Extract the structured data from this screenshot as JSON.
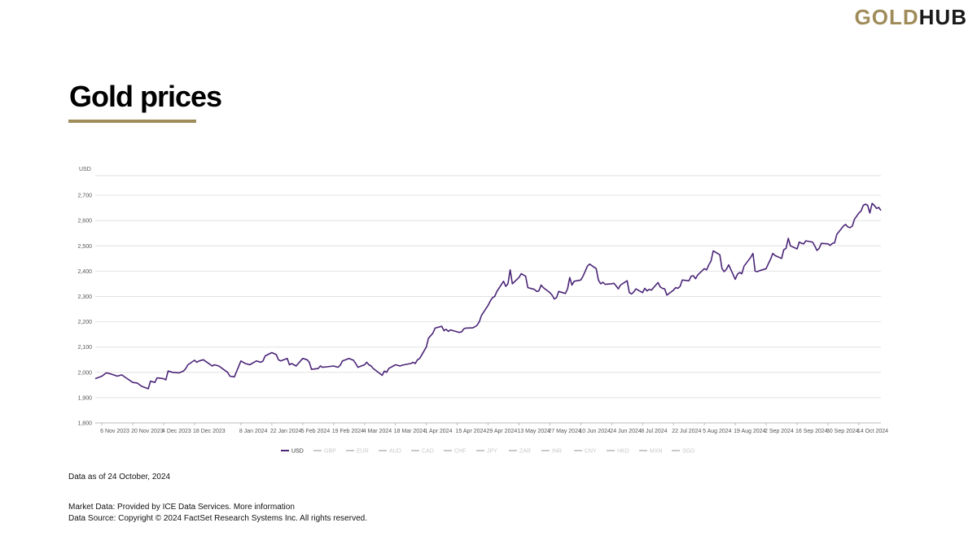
{
  "brand": {
    "gold": "GOLD",
    "hub": "HUB"
  },
  "page_title": "Gold prices",
  "footer": {
    "as_of": "Data as of 24 October, 2024",
    "market_data": "Market Data: Provided by ICE Data Services. More information",
    "source": "Data Source: Copyright © 2024 FactSet Research Systems Inc. All rights reserved."
  },
  "colors": {
    "accent": "#a08c5a",
    "series": "#4b2577",
    "inactive": "#c8c8c8"
  },
  "chart_data": {
    "type": "line",
    "title": "",
    "xlabel": "",
    "ylabel": "USD",
    "ylim": [
      1800,
      2800
    ],
    "yticks": [
      1800,
      1900,
      2000,
      2100,
      2200,
      2300,
      2400,
      2500,
      2600,
      2700
    ],
    "ytick_labels": [
      "1,800",
      "1,900",
      "2,000",
      "2,100",
      "2,200",
      "2,300",
      "2,400",
      "2,500",
      "2,600",
      "2,700"
    ],
    "x_start": "2023-11-03",
    "x_end": "2024-10-24",
    "xticks": [
      {
        "date": "2023-11-06",
        "label": "6 Nov 2023"
      },
      {
        "date": "2023-11-20",
        "label": "20 Nov 2023"
      },
      {
        "date": "2023-12-04",
        "label": "4 Dec 2023"
      },
      {
        "date": "2023-12-18",
        "label": "18 Dec 2023"
      },
      {
        "date": "2024-01-08",
        "label": "8 Jan 2024"
      },
      {
        "date": "2024-01-22",
        "label": "22 Jan 2024"
      },
      {
        "date": "2024-02-05",
        "label": "5 Feb 2024"
      },
      {
        "date": "2024-02-19",
        "label": "19 Feb 2024"
      },
      {
        "date": "2024-03-04",
        "label": "4 Mar 2024"
      },
      {
        "date": "2024-03-18",
        "label": "18 Mar 2024"
      },
      {
        "date": "2024-04-01",
        "label": "1 Apr 2024"
      },
      {
        "date": "2024-04-15",
        "label": "15 Apr 2024"
      },
      {
        "date": "2024-04-29",
        "label": "29 Apr 2024"
      },
      {
        "date": "2024-05-13",
        "label": "13 May 2024"
      },
      {
        "date": "2024-05-27",
        "label": "27 May 2024"
      },
      {
        "date": "2024-06-10",
        "label": "10 Jun 2024"
      },
      {
        "date": "2024-06-24",
        "label": "24 Jun 2024"
      },
      {
        "date": "2024-07-08",
        "label": "8 Jul 2024"
      },
      {
        "date": "2024-07-22",
        "label": "22 Jul 2024"
      },
      {
        "date": "2024-08-05",
        "label": "5 Aug 2024"
      },
      {
        "date": "2024-08-19",
        "label": "19 Aug 2024"
      },
      {
        "date": "2024-09-02",
        "label": "2 Sep 2024"
      },
      {
        "date": "2024-09-16",
        "label": "16 Sep 2024"
      },
      {
        "date": "2024-09-30",
        "label": "30 Sep 2024"
      },
      {
        "date": "2024-10-14",
        "label": "14 Oct 2024"
      }
    ],
    "legend": [
      {
        "name": "USD",
        "active": true
      },
      {
        "name": "GBP",
        "active": false
      },
      {
        "name": "EUR",
        "active": false
      },
      {
        "name": "AUD",
        "active": false
      },
      {
        "name": "CAD",
        "active": false
      },
      {
        "name": "CHF",
        "active": false
      },
      {
        "name": "JPY",
        "active": false
      },
      {
        "name": "ZAR",
        "active": false
      },
      {
        "name": "INR",
        "active": false
      },
      {
        "name": "CNY",
        "active": false
      },
      {
        "name": "HKD",
        "active": false
      },
      {
        "name": "MXN",
        "active": false
      },
      {
        "name": "SGD",
        "active": false
      }
    ],
    "legend_position": "bottom",
    "grid": true,
    "series": [
      {
        "name": "USD",
        "points": [
          [
            "2023-11-03",
            1975
          ],
          [
            "2023-11-06",
            1985
          ],
          [
            "2023-11-08",
            1998
          ],
          [
            "2023-11-10",
            1994
          ],
          [
            "2023-11-13",
            1985
          ],
          [
            "2023-11-15",
            1990
          ],
          [
            "2023-11-17",
            1978
          ],
          [
            "2023-11-20",
            1960
          ],
          [
            "2023-11-22",
            1958
          ],
          [
            "2023-11-24",
            1945
          ],
          [
            "2023-11-27",
            1935
          ],
          [
            "2023-11-28",
            1965
          ],
          [
            "2023-11-30",
            1960
          ],
          [
            "2023-12-01",
            1978
          ],
          [
            "2023-12-04",
            1975
          ],
          [
            "2023-12-05",
            1970
          ],
          [
            "2023-12-06",
            2005
          ],
          [
            "2023-12-08",
            2000
          ],
          [
            "2023-12-11",
            1998
          ],
          [
            "2023-12-13",
            2005
          ],
          [
            "2023-12-14",
            2015
          ],
          [
            "2023-12-15",
            2030
          ],
          [
            "2023-12-18",
            2048
          ],
          [
            "2023-12-19",
            2040
          ],
          [
            "2023-12-20",
            2045
          ],
          [
            "2023-12-22",
            2050
          ],
          [
            "2023-12-26",
            2025
          ],
          [
            "2023-12-27",
            2030
          ],
          [
            "2023-12-29",
            2025
          ],
          [
            "2024-01-02",
            2000
          ],
          [
            "2024-01-03",
            1985
          ],
          [
            "2024-01-05",
            1982
          ],
          [
            "2024-01-08",
            2045
          ],
          [
            "2024-01-10",
            2035
          ],
          [
            "2024-01-12",
            2030
          ],
          [
            "2024-01-15",
            2045
          ],
          [
            "2024-01-17",
            2040
          ],
          [
            "2024-01-18",
            2045
          ],
          [
            "2024-01-19",
            2065
          ],
          [
            "2024-01-22",
            2078
          ],
          [
            "2024-01-24",
            2070
          ],
          [
            "2024-01-25",
            2050
          ],
          [
            "2024-01-26",
            2045
          ],
          [
            "2024-01-29",
            2055
          ],
          [
            "2024-01-30",
            2030
          ],
          [
            "2024-01-31",
            2035
          ],
          [
            "2024-02-01",
            2030
          ],
          [
            "2024-02-02",
            2025
          ],
          [
            "2024-02-05",
            2055
          ],
          [
            "2024-02-07",
            2050
          ],
          [
            "2024-02-08",
            2040
          ],
          [
            "2024-02-09",
            2012
          ],
          [
            "2024-02-12",
            2015
          ],
          [
            "2024-02-13",
            2025
          ],
          [
            "2024-02-14",
            2020
          ],
          [
            "2024-02-16",
            2022
          ],
          [
            "2024-02-19",
            2025
          ],
          [
            "2024-02-21",
            2020
          ],
          [
            "2024-02-22",
            2028
          ],
          [
            "2024-02-23",
            2045
          ],
          [
            "2024-02-26",
            2055
          ],
          [
            "2024-02-28",
            2048
          ],
          [
            "2024-02-29",
            2035
          ],
          [
            "2024-03-01",
            2020
          ],
          [
            "2024-03-04",
            2030
          ],
          [
            "2024-03-05",
            2040
          ],
          [
            "2024-03-06",
            2030
          ],
          [
            "2024-03-07",
            2025
          ],
          [
            "2024-03-08",
            2015
          ],
          [
            "2024-03-11",
            1995
          ],
          [
            "2024-03-12",
            1988
          ],
          [
            "2024-03-13",
            2005
          ],
          [
            "2024-03-14",
            2000
          ],
          [
            "2024-03-15",
            2015
          ],
          [
            "2024-03-18",
            2030
          ],
          [
            "2024-03-19",
            2028
          ],
          [
            "2024-03-20",
            2025
          ],
          [
            "2024-03-21",
            2028
          ],
          [
            "2024-03-22",
            2030
          ],
          [
            "2024-03-25",
            2035
          ],
          [
            "2024-03-26",
            2040
          ],
          [
            "2024-03-27",
            2035
          ],
          [
            "2024-03-28",
            2050
          ],
          [
            "2024-03-29",
            2055
          ],
          [
            "2024-04-01",
            2100
          ],
          [
            "2024-04-02",
            2135
          ],
          [
            "2024-04-03",
            2145
          ],
          [
            "2024-04-04",
            2155
          ],
          [
            "2024-04-05",
            2175
          ],
          [
            "2024-04-08",
            2182
          ],
          [
            "2024-04-09",
            2165
          ],
          [
            "2024-04-10",
            2170
          ],
          [
            "2024-04-11",
            2162
          ],
          [
            "2024-04-12",
            2168
          ],
          [
            "2024-04-15",
            2160
          ],
          [
            "2024-04-16",
            2158
          ],
          [
            "2024-04-17",
            2160
          ],
          [
            "2024-04-18",
            2172
          ],
          [
            "2024-04-19",
            2175
          ],
          [
            "2024-04-22",
            2176
          ],
          [
            "2024-04-23",
            2180
          ],
          [
            "2024-04-24",
            2186
          ],
          [
            "2024-04-25",
            2200
          ],
          [
            "2024-04-26",
            2225
          ],
          [
            "2024-04-29",
            2265
          ],
          [
            "2024-04-30",
            2282
          ],
          [
            "2024-05-01",
            2295
          ],
          [
            "2024-05-02",
            2300
          ],
          [
            "2024-05-03",
            2320
          ],
          [
            "2024-05-06",
            2360
          ],
          [
            "2024-05-07",
            2340
          ],
          [
            "2024-05-08",
            2350
          ],
          [
            "2024-05-09",
            2405
          ],
          [
            "2024-05-10",
            2350
          ],
          [
            "2024-05-13",
            2375
          ],
          [
            "2024-05-14",
            2390
          ],
          [
            "2024-05-15",
            2385
          ],
          [
            "2024-05-16",
            2380
          ],
          [
            "2024-05-17",
            2335
          ],
          [
            "2024-05-20",
            2328
          ],
          [
            "2024-05-21",
            2320
          ],
          [
            "2024-05-22",
            2322
          ],
          [
            "2024-05-23",
            2345
          ],
          [
            "2024-05-24",
            2335
          ],
          [
            "2024-05-27",
            2315
          ],
          [
            "2024-05-28",
            2305
          ],
          [
            "2024-05-29",
            2290
          ],
          [
            "2024-05-30",
            2295
          ],
          [
            "2024-05-31",
            2320
          ],
          [
            "2024-06-03",
            2312
          ],
          [
            "2024-06-04",
            2330
          ],
          [
            "2024-06-05",
            2375
          ],
          [
            "2024-06-06",
            2345
          ],
          [
            "2024-06-07",
            2360
          ],
          [
            "2024-06-10",
            2365
          ],
          [
            "2024-06-11",
            2380
          ],
          [
            "2024-06-12",
            2400
          ],
          [
            "2024-06-13",
            2420
          ],
          [
            "2024-06-14",
            2428
          ],
          [
            "2024-06-17",
            2410
          ],
          [
            "2024-06-18",
            2365
          ],
          [
            "2024-06-19",
            2350
          ],
          [
            "2024-06-20",
            2356
          ],
          [
            "2024-06-21",
            2348
          ],
          [
            "2024-06-24",
            2350
          ],
          [
            "2024-06-25",
            2352
          ],
          [
            "2024-06-26",
            2342
          ],
          [
            "2024-06-27",
            2330
          ],
          [
            "2024-06-28",
            2345
          ],
          [
            "2024-07-01",
            2362
          ],
          [
            "2024-07-02",
            2315
          ],
          [
            "2024-07-03",
            2310
          ],
          [
            "2024-07-04",
            2318
          ],
          [
            "2024-07-05",
            2330
          ],
          [
            "2024-07-08",
            2315
          ],
          [
            "2024-07-09",
            2332
          ],
          [
            "2024-07-10",
            2322
          ],
          [
            "2024-07-11",
            2328
          ],
          [
            "2024-07-12",
            2325
          ],
          [
            "2024-07-15",
            2355
          ],
          [
            "2024-07-16",
            2338
          ],
          [
            "2024-07-17",
            2332
          ],
          [
            "2024-07-18",
            2330
          ],
          [
            "2024-07-19",
            2305
          ],
          [
            "2024-07-22",
            2325
          ],
          [
            "2024-07-23",
            2335
          ],
          [
            "2024-07-24",
            2332
          ],
          [
            "2024-07-25",
            2340
          ],
          [
            "2024-07-26",
            2365
          ],
          [
            "2024-07-29",
            2362
          ],
          [
            "2024-07-30",
            2380
          ],
          [
            "2024-07-31",
            2382
          ],
          [
            "2024-08-01",
            2370
          ],
          [
            "2024-08-02",
            2385
          ],
          [
            "2024-08-05",
            2410
          ],
          [
            "2024-08-06",
            2405
          ],
          [
            "2024-08-07",
            2425
          ],
          [
            "2024-08-08",
            2440
          ],
          [
            "2024-08-09",
            2480
          ],
          [
            "2024-08-12",
            2465
          ],
          [
            "2024-08-13",
            2410
          ],
          [
            "2024-08-14",
            2398
          ],
          [
            "2024-08-15",
            2408
          ],
          [
            "2024-08-16",
            2425
          ],
          [
            "2024-08-19",
            2368
          ],
          [
            "2024-08-20",
            2388
          ],
          [
            "2024-08-21",
            2395
          ],
          [
            "2024-08-22",
            2390
          ],
          [
            "2024-08-23",
            2420
          ],
          [
            "2024-08-26",
            2455
          ],
          [
            "2024-08-27",
            2470
          ],
          [
            "2024-08-28",
            2400
          ],
          [
            "2024-08-29",
            2398
          ],
          [
            "2024-08-30",
            2402
          ],
          [
            "2024-09-02",
            2410
          ],
          [
            "2024-09-03",
            2430
          ],
          [
            "2024-09-04",
            2448
          ],
          [
            "2024-09-05",
            2470
          ],
          [
            "2024-09-06",
            2462
          ],
          [
            "2024-09-09",
            2450
          ],
          [
            "2024-09-10",
            2485
          ],
          [
            "2024-09-11",
            2490
          ],
          [
            "2024-09-12",
            2530
          ],
          [
            "2024-09-13",
            2500
          ],
          [
            "2024-09-16",
            2488
          ],
          [
            "2024-09-17",
            2515
          ],
          [
            "2024-09-18",
            2510
          ],
          [
            "2024-09-19",
            2508
          ],
          [
            "2024-09-20",
            2520
          ],
          [
            "2024-09-23",
            2515
          ],
          [
            "2024-09-24",
            2500
          ],
          [
            "2024-09-25",
            2482
          ],
          [
            "2024-09-26",
            2490
          ],
          [
            "2024-09-27",
            2510
          ],
          [
            "2024-09-30",
            2508
          ],
          [
            "2024-10-01",
            2502
          ],
          [
            "2024-10-02",
            2510
          ],
          [
            "2024-10-03",
            2512
          ],
          [
            "2024-10-04",
            2545
          ],
          [
            "2024-10-07",
            2578
          ],
          [
            "2024-10-08",
            2585
          ],
          [
            "2024-10-09",
            2575
          ],
          [
            "2024-10-10",
            2572
          ],
          [
            "2024-10-11",
            2578
          ],
          [
            "2024-10-12",
            2605
          ],
          [
            "2024-10-14",
            2630
          ],
          [
            "2024-10-15",
            2638
          ],
          [
            "2024-10-16",
            2660
          ],
          [
            "2024-10-17",
            2665
          ],
          [
            "2024-10-18",
            2660
          ],
          [
            "2024-10-19",
            2630
          ],
          [
            "2024-10-20",
            2668
          ],
          [
            "2024-10-21",
            2660
          ],
          [
            "2024-10-22",
            2648
          ],
          [
            "2024-10-23",
            2652
          ],
          [
            "2024-10-24",
            2640
          ]
        ]
      }
    ]
  }
}
